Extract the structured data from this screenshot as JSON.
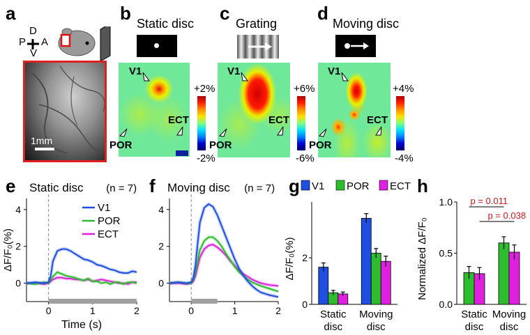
{
  "panels": {
    "a": {
      "letter": "a",
      "orientation": {
        "dorsal": "D",
        "ventral": "V",
        "posterior": "P",
        "anterior": "A"
      },
      "scale_bar": "1mm"
    },
    "b": {
      "letter": "b",
      "title": "Static disc",
      "map_labels": {
        "v1": "V1",
        "ect": "ECT",
        "por": "POR"
      },
      "colorbar": {
        "max": "+2%",
        "min": "-2%"
      }
    },
    "c": {
      "letter": "c",
      "title": "Grating",
      "map_labels": {
        "v1": "V1",
        "ect": "ECT",
        "por": "POR"
      },
      "colorbar": {
        "max": "+6%",
        "min": "-6%"
      }
    },
    "d": {
      "letter": "d",
      "title": "Moving disc",
      "map_labels": {
        "v1": "V1",
        "ect": "ECT",
        "por": "POR"
      },
      "colorbar": {
        "max": "+4%",
        "min": "-4%"
      }
    }
  },
  "colors": {
    "V1": "#1f4fe0",
    "POR": "#2ebd2e",
    "ECT": "#e020e0",
    "stim_bar": "#a0a0a0"
  },
  "chart_data": [
    {
      "id": "e",
      "letter": "e",
      "type": "line",
      "title": "Static disc",
      "n_label": "(n = 7)",
      "xlabel": "Time (s)",
      "ylabel": "ΔF/F₀(%)",
      "xlim": [
        -0.5,
        2.0
      ],
      "ylim": [
        -1.0,
        4.6
      ],
      "xticks": [
        0,
        1,
        2
      ],
      "yticks": [
        0,
        2,
        4
      ],
      "stimulus_interval": [
        0,
        2
      ],
      "x": [
        -0.5,
        -0.3,
        -0.1,
        0,
        0.05,
        0.1,
        0.2,
        0.3,
        0.4,
        0.5,
        0.6,
        0.7,
        0.8,
        0.9,
        1.0,
        1.1,
        1.2,
        1.3,
        1.4,
        1.5,
        1.6,
        1.7,
        1.8,
        1.9,
        2.0
      ],
      "series": [
        {
          "name": "V1",
          "values": [
            0.0,
            0.05,
            0.0,
            0.05,
            0.4,
            1.2,
            1.75,
            1.85,
            1.85,
            1.75,
            1.6,
            1.45,
            1.3,
            1.25,
            1.15,
            1.0,
            0.95,
            0.85,
            0.75,
            0.7,
            0.6,
            0.55,
            0.55,
            0.65,
            0.6
          ]
        },
        {
          "name": "POR",
          "values": [
            0.0,
            -0.05,
            0.05,
            0.0,
            0.2,
            0.35,
            0.6,
            0.5,
            0.4,
            0.35,
            0.3,
            0.2,
            0.15,
            0.25,
            0.1,
            0.1,
            0.0,
            0.05,
            -0.05,
            0.05,
            0.05,
            -0.05,
            0.05,
            0.05,
            0.0
          ]
        },
        {
          "name": "ECT",
          "values": [
            0.0,
            0.0,
            -0.05,
            0.0,
            0.1,
            0.2,
            0.3,
            0.3,
            0.25,
            0.25,
            0.2,
            0.2,
            0.15,
            0.2,
            0.1,
            0.15,
            0.2,
            0.15,
            0.1,
            0.05,
            0.0,
            0.0,
            -0.05,
            0.05,
            0.05
          ]
        }
      ]
    },
    {
      "id": "f",
      "letter": "f",
      "type": "line",
      "title": "Moving disc",
      "n_label": "(n = 7)",
      "xlabel": "",
      "ylabel": "",
      "xlim": [
        -0.5,
        2.0
      ],
      "ylim": [
        -1.0,
        4.6
      ],
      "xticks": [
        0,
        1,
        2
      ],
      "yticks": [
        0,
        2,
        4
      ],
      "stimulus_interval": [
        0,
        0.6
      ],
      "x": [
        -0.5,
        -0.3,
        -0.1,
        0,
        0.05,
        0.1,
        0.15,
        0.2,
        0.3,
        0.4,
        0.5,
        0.6,
        0.7,
        0.8,
        0.9,
        1.0,
        1.1,
        1.2,
        1.3,
        1.4,
        1.5,
        1.6,
        1.8,
        2.0
      ],
      "series": [
        {
          "name": "V1",
          "values": [
            0.0,
            0.05,
            0.0,
            0.05,
            0.3,
            1.0,
            2.2,
            3.3,
            4.1,
            4.3,
            4.15,
            3.7,
            3.1,
            2.5,
            1.9,
            1.3,
            0.8,
            0.4,
            0.1,
            -0.15,
            -0.35,
            -0.5,
            -0.65,
            -0.75
          ]
        },
        {
          "name": "POR",
          "values": [
            0.0,
            0.05,
            0.0,
            0.0,
            0.2,
            0.6,
            1.2,
            1.8,
            2.3,
            2.5,
            2.5,
            2.3,
            2.0,
            1.6,
            1.25,
            0.9,
            0.6,
            0.4,
            0.2,
            0.05,
            -0.05,
            -0.15,
            -0.3,
            -0.45
          ]
        },
        {
          "name": "ECT",
          "values": [
            0.0,
            0.0,
            -0.05,
            0.0,
            0.1,
            0.4,
            0.9,
            1.4,
            1.85,
            2.05,
            2.1,
            1.95,
            1.75,
            1.5,
            1.2,
            0.95,
            0.7,
            0.5,
            0.35,
            0.2,
            0.1,
            0.0,
            -0.1,
            -0.15
          ]
        }
      ]
    },
    {
      "id": "g",
      "letter": "g",
      "type": "bar",
      "ylabel": "ΔF/F₀(%)",
      "ylim": [
        0,
        4.4
      ],
      "yticks": [
        0,
        2
      ],
      "categories": [
        "Static disc",
        "Moving disc"
      ],
      "category_lines": [
        [
          "Static",
          "disc"
        ],
        [
          "Moving",
          "disc"
        ]
      ],
      "series": [
        {
          "name": "V1",
          "values": [
            1.6,
            3.7
          ],
          "errors": [
            0.18,
            0.2
          ]
        },
        {
          "name": "POR",
          "values": [
            0.5,
            2.2
          ],
          "errors": [
            0.1,
            0.2
          ]
        },
        {
          "name": "ECT",
          "values": [
            0.45,
            1.85
          ],
          "errors": [
            0.08,
            0.22
          ]
        }
      ],
      "legend": "top"
    },
    {
      "id": "h",
      "letter": "h",
      "type": "bar",
      "ylabel": "Normalized ΔF/F₀",
      "ylim": [
        0,
        1.0
      ],
      "yticks": [
        0,
        0.5,
        1.0
      ],
      "ytick_labels": [
        "0.0",
        "0.5",
        "1.0"
      ],
      "categories": [
        "Static disc",
        "Moving disc"
      ],
      "category_lines": [
        [
          "Static",
          "disc"
        ],
        [
          "Moving",
          "disc"
        ]
      ],
      "series": [
        {
          "name": "POR",
          "values": [
            0.31,
            0.6
          ],
          "errors": [
            0.06,
            0.06
          ]
        },
        {
          "name": "ECT",
          "values": [
            0.3,
            0.51
          ],
          "errors": [
            0.06,
            0.07
          ]
        }
      ],
      "annotations": [
        {
          "text": "p = 0.011",
          "pair": [
            "Static disc POR",
            "Moving disc POR"
          ]
        },
        {
          "text": "p = 0.038",
          "pair": [
            "Static disc ECT",
            "Moving disc ECT"
          ]
        }
      ]
    }
  ]
}
